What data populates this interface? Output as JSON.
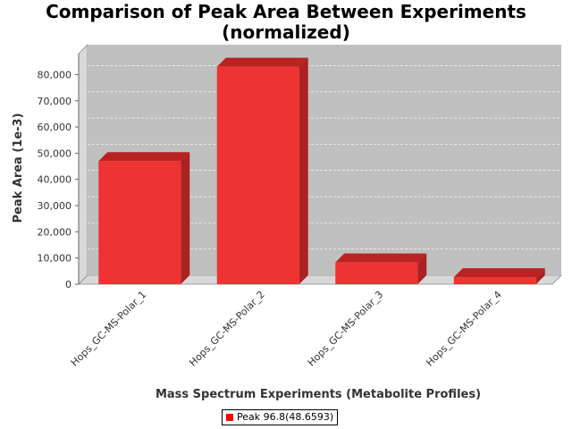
{
  "chart_data": {
    "type": "bar",
    "title_line1": "Comparison of Peak Area Between Experiments",
    "title_line2": "(normalized)",
    "xlabel": "Mass Spectrum Experiments (Metabolite Profiles)",
    "ylabel": "Peak Area (1e-3)",
    "categories": [
      "Hops_GC-MS-Polar_1",
      "Hops_GC-MS-Polar_2",
      "Hops_GC-MS-Polar_3",
      "Hops_GC-MS-Polar_4"
    ],
    "series": [
      {
        "name": "Peak 96.8(48.6593)",
        "values": [
          47000,
          83000,
          8300,
          2700
        ]
      }
    ],
    "ylim": [
      0,
      88000
    ],
    "yticks": [
      0,
      10000,
      20000,
      30000,
      40000,
      50000,
      60000,
      70000,
      80000
    ],
    "ytick_labels": [
      "0",
      "10,000",
      "20,000",
      "30,000",
      "40,000",
      "50,000",
      "60,000",
      "70,000",
      "80,000"
    ],
    "grid": true,
    "legend_position": "bottom",
    "colors": {
      "bar_front": "#ee3333",
      "bar_top": "#bb2222",
      "bar_side": "#aa2222",
      "plot_back": "#c0c0c0",
      "plot_wall": "#d8d8d8",
      "gridline": "#ffffff",
      "legend_swatch": "#ff0000"
    }
  }
}
